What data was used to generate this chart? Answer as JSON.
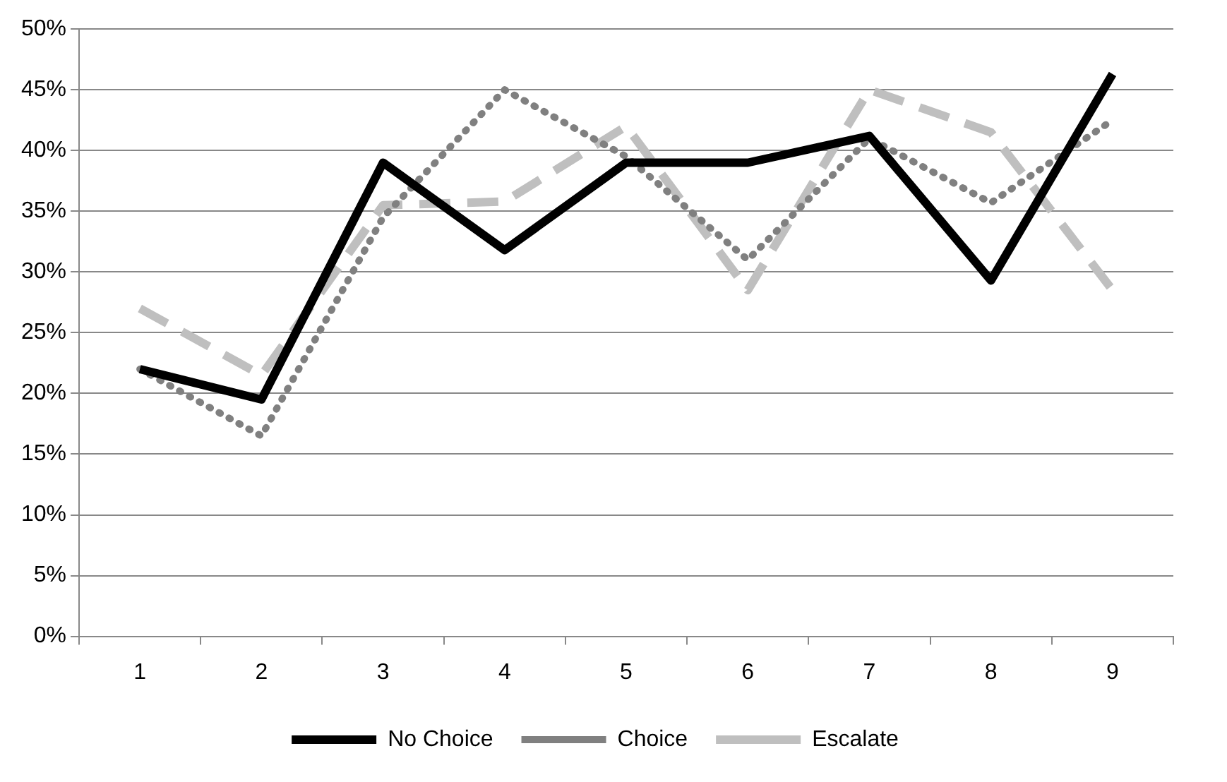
{
  "chart_data": {
    "type": "line",
    "categories": [
      "1",
      "2",
      "3",
      "4",
      "5",
      "6",
      "7",
      "8",
      "9"
    ],
    "series": [
      {
        "name": "No Choice",
        "color": "#000000",
        "line_style": "solid",
        "values": [
          22,
          19.5,
          39,
          31.8,
          39,
          39,
          41.2,
          29.3,
          46.3
        ]
      },
      {
        "name": "Choice",
        "color": "#808080",
        "line_style": "dotted",
        "values": [
          22,
          16.5,
          34.5,
          45,
          39.5,
          31,
          41,
          35.7,
          42.5
        ]
      },
      {
        "name": "Escalate",
        "color": "#bfbfbf",
        "line_style": "dashed",
        "values": [
          27,
          21.5,
          35.5,
          35.8,
          42,
          28.5,
          45,
          41.5,
          28.5
        ]
      }
    ],
    "ylim": [
      0,
      50
    ],
    "yticks": [
      {
        "value": 0,
        "label": "0%"
      },
      {
        "value": 5,
        "label": "5%"
      },
      {
        "value": 10,
        "label": "10%"
      },
      {
        "value": 15,
        "label": "15%"
      },
      {
        "value": 20,
        "label": "20%"
      },
      {
        "value": 25,
        "label": "25%"
      },
      {
        "value": 30,
        "label": "30%"
      },
      {
        "value": 35,
        "label": "35%"
      },
      {
        "value": 40,
        "label": "40%"
      },
      {
        "value": 45,
        "label": "45%"
      },
      {
        "value": 50,
        "label": "50%"
      }
    ],
    "grid": "y",
    "legend": "bottom",
    "marker": "none"
  }
}
